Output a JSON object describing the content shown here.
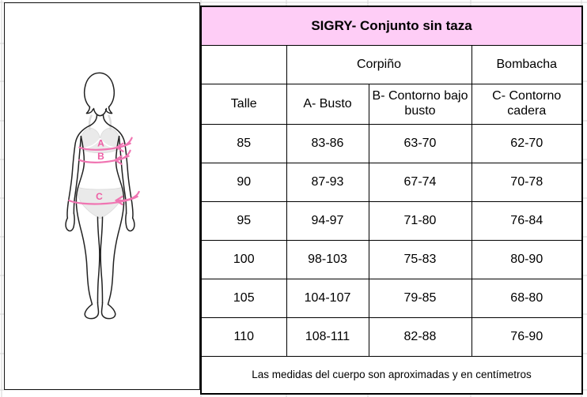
{
  "table": {
    "title": "SIGRY- Conjunto sin taza",
    "group_empty": "",
    "group_corpino": "Corpiño",
    "group_bombacha": "Bombacha",
    "columns": [
      "Talle",
      "A- Busto",
      "B- Contorno bajo busto",
      "C- Contorno cadera"
    ],
    "rows": [
      [
        "85",
        "83-86",
        "63-70",
        "62-70"
      ],
      [
        "90",
        "87-93",
        "67-74",
        "70-78"
      ],
      [
        "95",
        "94-97",
        "71-80",
        "76-84"
      ],
      [
        "100",
        "98-103",
        "75-83",
        "80-90"
      ],
      [
        "105",
        "104-107",
        "79-85",
        "68-80"
      ],
      [
        "110",
        "108-111",
        "82-88",
        "76-90"
      ]
    ],
    "footnote": "Las medidas del cuerpo son aproximadas y en centímetros"
  },
  "figure": {
    "label_a": "A",
    "label_b": "B",
    "label_c": "C"
  },
  "colors": {
    "title_background": "#fecdf6",
    "arrow_pink": "#f075b2",
    "grid_gray": "#d6d6d6",
    "border_black": "#000000"
  }
}
